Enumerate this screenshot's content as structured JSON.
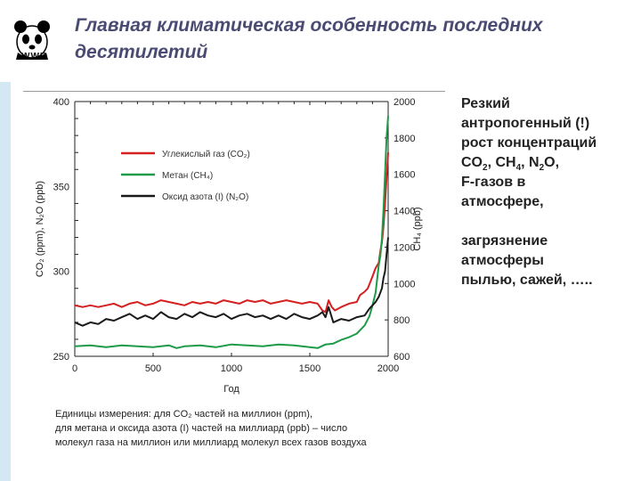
{
  "header": {
    "logo_label": "WWF",
    "title": "Главная климатическая особенность последних десятилетий"
  },
  "side_panel": {
    "line1": "Резкий",
    "line2": "антропогенный (!)",
    "line3": "рост концентраций",
    "co2": "CO",
    "co2_sub": "2",
    "sep1": ", ",
    "ch4": "CH",
    "ch4_sub": "4",
    "sep2": ", ",
    "n2o_a": "N",
    "n2o_sub": "2",
    "n2o_b": "O,",
    "line5": "F-газов в",
    "line6": "атмосфере,",
    "line7": "загрязнение",
    "line8": "атмосферы",
    "line9": "пылью, сажей, ….."
  },
  "chart_data": {
    "type": "line",
    "xlabel": "Год",
    "ylabel_left": "CO₂ (ppm), N₂O (ppb)",
    "ylabel_right": "CH₄ (ppb)",
    "xlim": [
      0,
      2000
    ],
    "ylim_left": [
      250,
      400
    ],
    "ylim_right": [
      600,
      2000
    ],
    "x_ticks": [
      "0",
      "500",
      "1000",
      "1500",
      "2000"
    ],
    "y_left_ticks": [
      "250",
      "300",
      "350",
      "400"
    ],
    "y_right_ticks": [
      "600",
      "800",
      "1000",
      "1200",
      "1400",
      "1600",
      "1800",
      "2000"
    ],
    "grid": false,
    "legend_placement": "top-left",
    "series": [
      {
        "name": "Углекислый газ (CO₂)",
        "axis": "left",
        "color": "#d42020",
        "points": [
          [
            0,
            280
          ],
          [
            50,
            279
          ],
          [
            100,
            280
          ],
          [
            150,
            279
          ],
          [
            200,
            280
          ],
          [
            250,
            281
          ],
          [
            300,
            279
          ],
          [
            350,
            281
          ],
          [
            400,
            282
          ],
          [
            450,
            280
          ],
          [
            500,
            281
          ],
          [
            550,
            283
          ],
          [
            600,
            282
          ],
          [
            650,
            281
          ],
          [
            700,
            280
          ],
          [
            750,
            282
          ],
          [
            800,
            281
          ],
          [
            850,
            282
          ],
          [
            900,
            281
          ],
          [
            950,
            283
          ],
          [
            1000,
            282
          ],
          [
            1050,
            281
          ],
          [
            1100,
            283
          ],
          [
            1150,
            282
          ],
          [
            1200,
            283
          ],
          [
            1250,
            281
          ],
          [
            1300,
            282
          ],
          [
            1350,
            283
          ],
          [
            1400,
            282
          ],
          [
            1450,
            281
          ],
          [
            1500,
            282
          ],
          [
            1550,
            281
          ],
          [
            1580,
            277
          ],
          [
            1600,
            276
          ],
          [
            1620,
            283
          ],
          [
            1640,
            279
          ],
          [
            1660,
            277
          ],
          [
            1700,
            279
          ],
          [
            1750,
            281
          ],
          [
            1800,
            282
          ],
          [
            1820,
            286
          ],
          [
            1850,
            288
          ],
          [
            1870,
            290
          ],
          [
            1900,
            297
          ],
          [
            1920,
            302
          ],
          [
            1940,
            305
          ],
          [
            1950,
            312
          ],
          [
            1960,
            317
          ],
          [
            1970,
            326
          ],
          [
            1980,
            340
          ],
          [
            1990,
            355
          ],
          [
            2000,
            370
          ]
        ]
      },
      {
        "name": "Метан (CH₄)",
        "axis": "right",
        "color": "#1f9a48",
        "points": [
          [
            0,
            655
          ],
          [
            100,
            660
          ],
          [
            200,
            650
          ],
          [
            300,
            660
          ],
          [
            400,
            655
          ],
          [
            500,
            650
          ],
          [
            600,
            660
          ],
          [
            650,
            645
          ],
          [
            700,
            655
          ],
          [
            800,
            660
          ],
          [
            900,
            650
          ],
          [
            1000,
            665
          ],
          [
            1100,
            660
          ],
          [
            1200,
            655
          ],
          [
            1300,
            665
          ],
          [
            1400,
            660
          ],
          [
            1500,
            650
          ],
          [
            1550,
            645
          ],
          [
            1600,
            665
          ],
          [
            1650,
            670
          ],
          [
            1700,
            690
          ],
          [
            1750,
            705
          ],
          [
            1800,
            725
          ],
          [
            1850,
            770
          ],
          [
            1880,
            820
          ],
          [
            1900,
            880
          ],
          [
            1920,
            950
          ],
          [
            1940,
            1100
          ],
          [
            1950,
            1150
          ],
          [
            1960,
            1250
          ],
          [
            1970,
            1400
          ],
          [
            1980,
            1600
          ],
          [
            1990,
            1800
          ],
          [
            2000,
            1920
          ]
        ]
      },
      {
        "name": "Оксид азота (I) (N₂O)",
        "axis": "left",
        "color": "#1a1a1a",
        "points": [
          [
            0,
            270
          ],
          [
            50,
            268
          ],
          [
            100,
            270
          ],
          [
            150,
            269
          ],
          [
            200,
            272
          ],
          [
            250,
            271
          ],
          [
            300,
            273
          ],
          [
            350,
            275
          ],
          [
            400,
            272
          ],
          [
            450,
            274
          ],
          [
            500,
            272
          ],
          [
            550,
            276
          ],
          [
            600,
            273
          ],
          [
            650,
            272
          ],
          [
            700,
            275
          ],
          [
            750,
            273
          ],
          [
            800,
            276
          ],
          [
            850,
            274
          ],
          [
            900,
            273
          ],
          [
            950,
            275
          ],
          [
            1000,
            272
          ],
          [
            1050,
            274
          ],
          [
            1100,
            275
          ],
          [
            1150,
            273
          ],
          [
            1200,
            274
          ],
          [
            1250,
            272
          ],
          [
            1300,
            274
          ],
          [
            1350,
            272
          ],
          [
            1400,
            275
          ],
          [
            1450,
            273
          ],
          [
            1500,
            272
          ],
          [
            1550,
            274
          ],
          [
            1580,
            276
          ],
          [
            1600,
            273
          ],
          [
            1620,
            279
          ],
          [
            1650,
            270
          ],
          [
            1700,
            272
          ],
          [
            1750,
            271
          ],
          [
            1800,
            273
          ],
          [
            1850,
            274
          ],
          [
            1880,
            278
          ],
          [
            1900,
            280
          ],
          [
            1920,
            282
          ],
          [
            1940,
            285
          ],
          [
            1960,
            290
          ],
          [
            1970,
            296
          ],
          [
            1980,
            300
          ],
          [
            1990,
            310
          ],
          [
            2000,
            320
          ]
        ]
      }
    ],
    "footnote": [
      "Единицы измерения: для CO₂ частей на миллион (ppm),",
      "для метана и оксида азота (I) частей на миллиард (ppb) – число",
      "молекул газа на миллион или миллиард молекул всех газов воздуха"
    ]
  },
  "colors": {
    "title": "#4a4a72",
    "accent_bar": "#d4e8f4"
  },
  "icons": {
    "logo": "panda-icon"
  }
}
